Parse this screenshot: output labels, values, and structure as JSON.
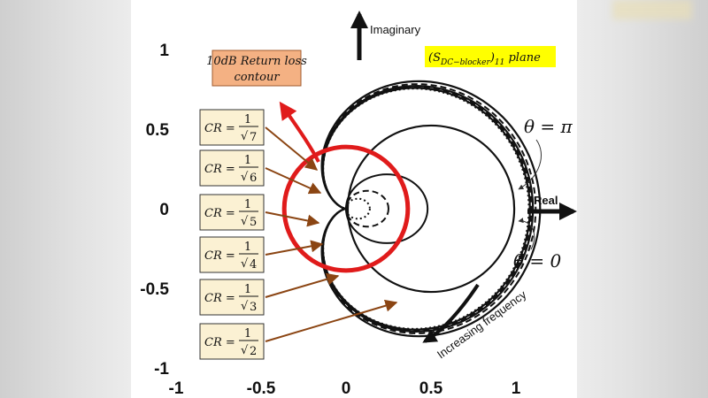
{
  "axes": {
    "y_ticks": [
      "1",
      "0.5",
      "0",
      "-0.5",
      "-1"
    ],
    "x_ticks": [
      "-1",
      "-0.5",
      "0",
      "0.5",
      "1"
    ],
    "xlim": [
      -1,
      1
    ],
    "ylim": [
      -1,
      1
    ]
  },
  "labels": {
    "imaginary": "Imaginary",
    "real": "Real",
    "plane": "(S",
    "plane_sub": "DC−blocker",
    "plane_tail": ")",
    "plane_sub2": "11",
    "plane_word": " plane",
    "theta_pi": "θ = π",
    "theta_zero": "θ = 0",
    "increasing_frequency": "Increasing frequency",
    "return_loss_line1": "10dB Return loss",
    "return_loss_line2": "contour"
  },
  "cr_boxes": [
    {
      "prefix": "CR =",
      "num": "1",
      "den": "7"
    },
    {
      "prefix": "CR =",
      "num": "1",
      "den": "6"
    },
    {
      "prefix": "CR =",
      "num": "1",
      "den": "5"
    },
    {
      "prefix": "CR =",
      "num": "1",
      "den": "4"
    },
    {
      "prefix": "CR =",
      "num": "1",
      "den": "3"
    },
    {
      "prefix": "CR =",
      "num": "1",
      "den": "2"
    }
  ],
  "colors": {
    "return_loss_circle": "#e01b1b",
    "pointer_arrows": "#8b4513",
    "cr_box_fill": "#fbf1d3",
    "return_loss_box_fill": "#f4b183",
    "plane_box_fill": "#ffff00"
  },
  "chart_data": {
    "type": "line",
    "xlim": [
      -1,
      1
    ],
    "ylim": [
      -1,
      1
    ],
    "grid": false,
    "series": [
      {
        "cr": 0.38,
        "style": "dotted"
      },
      {
        "cr": 0.41,
        "style": "solid"
      },
      {
        "cr": 0.45,
        "style": "dashed"
      },
      {
        "cr": 0.5,
        "style": "solid"
      },
      {
        "cr": 0.58,
        "style": "dashed"
      },
      {
        "cr": 0.71,
        "style": "solid"
      }
    ],
    "return_loss_circle": {
      "center": [
        0,
        0
      ],
      "radius": 0.3162
    }
  }
}
